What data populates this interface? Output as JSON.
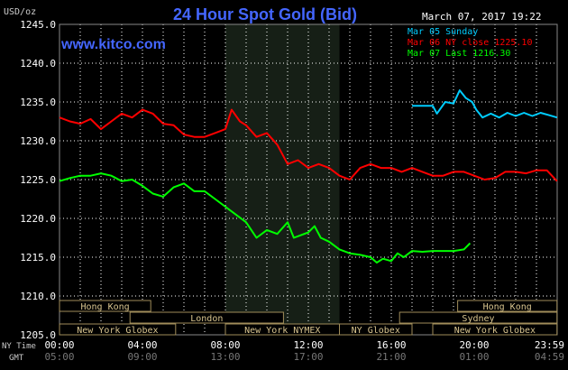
{
  "chart_data": {
    "type": "line",
    "title": "24 Hour Spot Gold (Bid)",
    "datetime": "March 07, 2017 19:22",
    "watermark": "www.kitco.com",
    "ylabel": "USD/oz",
    "ylim": [
      1205,
      1245
    ],
    "yticks": [
      "1245.0",
      "1240.0",
      "1235.0",
      "1230.0",
      "1225.0",
      "1220.0",
      "1215.0",
      "1210.0",
      "1205.0"
    ],
    "xlim": [
      0,
      24
    ],
    "xticks_ny": [
      "00:00",
      "04:00",
      "08:00",
      "12:00",
      "16:00",
      "20:00",
      "23:59"
    ],
    "xticks_gmt": [
      "05:00",
      "09:00",
      "13:00",
      "17:00",
      "21:00",
      "01:00",
      "04:59"
    ],
    "row_label_ny": "NY Time",
    "row_label_gmt": "GMT",
    "shaded_period": [
      8,
      13.5
    ],
    "grid": true,
    "legend_position": "top-right",
    "legend": [
      {
        "label": "Mar 05 Sunday",
        "color": "#00ccff"
      },
      {
        "label": "Mar 06 NY close 1225.10",
        "color": "#ff0000"
      },
      {
        "label": "Mar 07 Last 1216.30",
        "color": "#00ff00"
      }
    ],
    "sessions_row1": [
      {
        "label": "Hong Kong",
        "start": 0,
        "end": 4.4
      },
      {
        "label": "Hong Kong",
        "start": 19.2,
        "end": 23.99
      }
    ],
    "sessions_row2": [
      {
        "label": "London",
        "start": 3.4,
        "end": 10.8
      },
      {
        "label": "Sydney",
        "start": 16.4,
        "end": 23.99
      }
    ],
    "sessions_row3": [
      {
        "label": "New York Globex",
        "start": 0,
        "end": 5.6
      },
      {
        "label": "New York NYMEX",
        "start": 8.0,
        "end": 13.5
      },
      {
        "label": "NY Globex",
        "start": 13.5,
        "end": 17.0
      },
      {
        "label": "New York Globex",
        "start": 18.0,
        "end": 23.99
      }
    ],
    "series": [
      {
        "name": "Mar 05 Sunday",
        "color": "#00ccff",
        "x": [
          17.0,
          18.0,
          18.2,
          18.6,
          19.0,
          19.3,
          19.6,
          19.9,
          20.1,
          20.4,
          20.8,
          21.2,
          21.6,
          22.0,
          22.4,
          22.8,
          23.2,
          23.6,
          23.99
        ],
        "y": [
          1234.5,
          1234.5,
          1233.5,
          1235.0,
          1234.8,
          1236.5,
          1235.5,
          1235.0,
          1234.0,
          1233.0,
          1233.5,
          1233.0,
          1233.6,
          1233.2,
          1233.6,
          1233.2,
          1233.6,
          1233.3,
          1233.0
        ]
      },
      {
        "name": "Mar 06 NY close 1225.10",
        "color": "#ff0000",
        "x": [
          0,
          0.5,
          1.0,
          1.5,
          2.0,
          2.5,
          3.0,
          3.5,
          4.0,
          4.5,
          5.0,
          5.5,
          6.0,
          6.5,
          7.0,
          7.5,
          8.0,
          8.3,
          8.7,
          9.0,
          9.5,
          10.0,
          10.5,
          11.0,
          11.5,
          12.0,
          12.5,
          13.0,
          13.5,
          14.0,
          14.5,
          15.0,
          15.5,
          16.0,
          16.5,
          17.0,
          17.5,
          18.0,
          18.5,
          19.0,
          19.5,
          20.0,
          20.5,
          21.0,
          21.5,
          22.0,
          22.5,
          23.0,
          23.5,
          23.99
        ],
        "y": [
          1233.0,
          1232.5,
          1232.2,
          1232.8,
          1231.5,
          1232.5,
          1233.5,
          1233.0,
          1234.0,
          1233.5,
          1232.2,
          1232.0,
          1230.8,
          1230.5,
          1230.5,
          1231.0,
          1231.5,
          1234.0,
          1232.5,
          1232.0,
          1230.5,
          1231.0,
          1229.5,
          1227.0,
          1227.5,
          1226.5,
          1227.0,
          1226.5,
          1225.5,
          1225.0,
          1226.5,
          1227.0,
          1226.5,
          1226.5,
          1226.0,
          1226.5,
          1226.0,
          1225.5,
          1225.5,
          1226.0,
          1226.0,
          1225.5,
          1225.0,
          1225.2,
          1226.0,
          1226.0,
          1225.8,
          1226.2,
          1226.2,
          1224.8
        ]
      },
      {
        "name": "Mar 07 Last 1216.30",
        "color": "#00ff00",
        "x": [
          0,
          0.5,
          1.0,
          1.5,
          2.0,
          2.5,
          3.0,
          3.5,
          4.0,
          4.5,
          5.0,
          5.5,
          6.0,
          6.5,
          7.0,
          7.5,
          8.0,
          8.5,
          9.0,
          9.5,
          10.0,
          10.5,
          11.0,
          11.3,
          11.6,
          12.0,
          12.3,
          12.6,
          13.0,
          13.5,
          14.0,
          14.5,
          15.0,
          15.3,
          15.6,
          16.0,
          16.3,
          16.6,
          17.0,
          17.5,
          18.0,
          18.5,
          19.0,
          19.5,
          19.8
        ],
        "y": [
          1224.8,
          1225.2,
          1225.5,
          1225.5,
          1225.8,
          1225.5,
          1224.8,
          1225.0,
          1224.2,
          1223.2,
          1222.8,
          1224.0,
          1224.5,
          1223.5,
          1223.5,
          1222.5,
          1221.5,
          1220.5,
          1219.5,
          1217.5,
          1218.5,
          1218.0,
          1219.5,
          1217.5,
          1217.8,
          1218.2,
          1219.0,
          1217.5,
          1217.0,
          1216.0,
          1215.5,
          1215.3,
          1215.0,
          1214.3,
          1214.8,
          1214.5,
          1215.5,
          1215.0,
          1215.8,
          1215.7,
          1215.8,
          1215.8,
          1215.8,
          1216.0,
          1216.8
        ]
      }
    ]
  }
}
